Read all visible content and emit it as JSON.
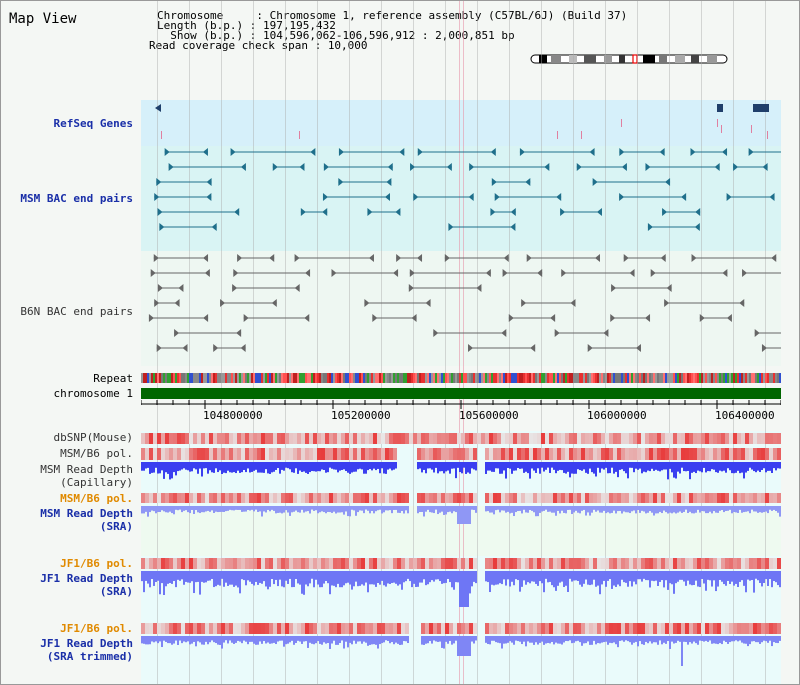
{
  "title": "Map View",
  "info": {
    "chromosome_label": "Chromosome     : ",
    "chromosome_value": "Chromosome 1, reference assembly (C57BL/6J) (Build 37)",
    "length_label": "Length (b.p.) : ",
    "length_value": "197,195,432",
    "show_label": "  Show (b.p.) : ",
    "show_value": "104,596,062-106,596,912 : 2,000,851 bp",
    "coverage_label": "Read coverage check span : ",
    "coverage_value": "10,000"
  },
  "tracks": {
    "refseq": "RefSeq Genes",
    "msm_bac": "MSM BAC end pairs",
    "b6n_bac": "B6N BAC end pairs",
    "repeat": "Repeat",
    "chromosome": "chromosome 1",
    "dbsnp": "dbSNP(Mouse)",
    "msm_b6_pol_1": "MSM/B6 pol.",
    "msm_read_depth_cap": "MSM Read Depth\n(Capillary)",
    "msm_b6_pol_2": "MSM/B6 pol.",
    "msm_read_depth_sra": "MSM Read Depth\n(SRA)",
    "jf1_b6_pol_1": "JF1/B6 pol.",
    "jf1_read_depth_sra": "JF1 Read Depth\n(SRA)",
    "jf1_b6_pol_2": "JF1/B6 pol.",
    "jf1_read_depth_trim": "JF1 Read Depth\n(SRA trimmed)"
  },
  "axis": {
    "ticks": [
      "104800000",
      "105200000",
      "105600000",
      "106000000",
      "106400000"
    ]
  },
  "colors": {
    "refseq_bg": "#d6f0fa",
    "msm_bg": "#d9f4f4",
    "bac_msm": "#1f6f8b",
    "bac_b6n": "#666666",
    "chromosome": "#006600",
    "pol_red": "#e83030",
    "depth_blue": "#2b3cf0",
    "depth_light": "#7f86f5",
    "polymorph_bg": "#ffe0e0"
  }
}
